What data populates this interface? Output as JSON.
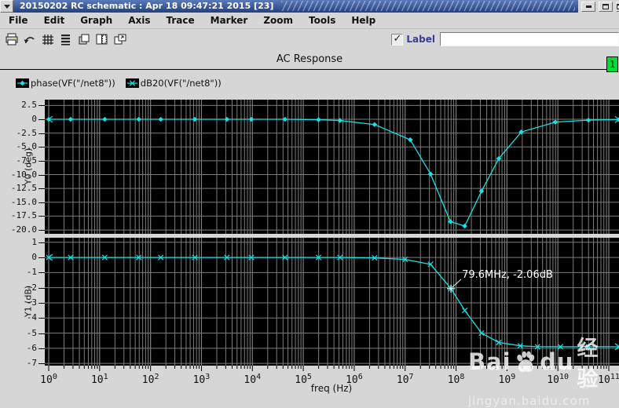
{
  "window": {
    "title": "20150202 RC schematic : Apr 18 09:47:21 2015 [23]",
    "controls": [
      "window-menu",
      "minimize",
      "maximize",
      "close"
    ],
    "badge": "1"
  },
  "menu_bar": {
    "items": [
      "File",
      "Edit",
      "Graph",
      "Axis",
      "Trace",
      "Marker",
      "Zoom",
      "Tools",
      "Help"
    ]
  },
  "toolbar": {
    "icons": [
      "printer-icon",
      "undo-icon",
      "grid-icon",
      "strip-mode-icon",
      "copy-icon",
      "split-view-icon",
      "new-window-icon"
    ],
    "label_checkbox": {
      "checked": true,
      "check_glyph": "✓",
      "label": "Label"
    },
    "label_input_value": ""
  },
  "plot_header": {
    "title": "AC Response"
  },
  "legend": [
    {
      "marker": "diamond",
      "expr": "phase(VF(\"/net8\"))"
    },
    {
      "marker": "asterisk",
      "expr": "dB20(VF(\"/net8\"))"
    }
  ],
  "colors": {
    "trace": "#17e3e3",
    "grid": "#7d7d7d",
    "plot_bg": "#000000",
    "chrome": "#d6d6d6",
    "titlebar_blue": "#2d4f96",
    "annotation": "#ffffff",
    "badge_green": "#00dd33",
    "label_text": "#3c3c8e"
  },
  "watermark": {
    "brand_left": "Bai",
    "brand_right": "du",
    "brand_cn": "经验",
    "url": "jingyan.baidu.com"
  },
  "chart_data": [
    {
      "type": "line",
      "panel": "top",
      "title": "AC Response",
      "xlabel": "freq (Hz)",
      "xscale": "log",
      "x_decades_range": [
        0,
        11.2
      ],
      "ylabel": "Y0 (deg)",
      "ytick_labels": [
        "2.5",
        "0",
        "-2.5",
        "-5.0",
        "-7.5",
        "-10.0",
        "-12.5",
        "-15.0",
        "-17.5",
        "-20.0"
      ],
      "ylim": [
        -20.7,
        3.55
      ],
      "grid": true,
      "series": [
        {
          "name": "phase(VF(\"/net8\"))",
          "marker": "diamond",
          "points_log10f_deg": [
            [
              0,
              0
            ],
            [
              0.43,
              0
            ],
            [
              1.1,
              0
            ],
            [
              1.77,
              0
            ],
            [
              2.2,
              0
            ],
            [
              2.87,
              0
            ],
            [
              3.5,
              0
            ],
            [
              3.98,
              0
            ],
            [
              4.64,
              0
            ],
            [
              5.3,
              -0.08
            ],
            [
              5.72,
              -0.22
            ],
            [
              6.4,
              -0.95
            ],
            [
              7.1,
              -3.7
            ],
            [
              7.5,
              -9.9
            ],
            [
              7.89,
              -18.5
            ],
            [
              8.17,
              -19.3
            ],
            [
              8.5,
              -13.0
            ],
            [
              8.84,
              -7.1
            ],
            [
              9.28,
              -2.3
            ],
            [
              9.95,
              -0.5
            ],
            [
              10.6,
              -0.15
            ],
            [
              11.2,
              -0.05
            ]
          ]
        }
      ]
    },
    {
      "type": "line",
      "panel": "bottom",
      "xlabel": "freq (Hz)",
      "xscale": "log",
      "x_decades_range": [
        0,
        11.2
      ],
      "xtick_exponents": [
        0,
        1,
        2,
        3,
        4,
        5,
        6,
        7,
        8,
        9,
        10,
        11
      ],
      "ylabel": "Y1 (dB)",
      "ytick_labels": [
        "1",
        "0",
        "-1",
        "-2",
        "-3",
        "-4",
        "-5",
        "-6",
        "-7"
      ],
      "ylim": [
        -7.15,
        1.3
      ],
      "grid": true,
      "series": [
        {
          "name": "dB20(VF(\"/net8\"))",
          "marker": "x",
          "points_log10f_db": [
            [
              0,
              0
            ],
            [
              0.43,
              0
            ],
            [
              1.1,
              0
            ],
            [
              1.77,
              0
            ],
            [
              2.2,
              0
            ],
            [
              2.87,
              0
            ],
            [
              3.5,
              0
            ],
            [
              3.98,
              0
            ],
            [
              4.64,
              0
            ],
            [
              5.3,
              0
            ],
            [
              5.72,
              0
            ],
            [
              6.4,
              -0.03
            ],
            [
              7.0,
              -0.13
            ],
            [
              7.5,
              -0.45
            ],
            [
              7.9,
              -2.06
            ],
            [
              8.17,
              -3.5
            ],
            [
              8.5,
              -5.0
            ],
            [
              8.84,
              -5.62
            ],
            [
              9.26,
              -5.84
            ],
            [
              9.6,
              -5.9
            ],
            [
              10.05,
              -5.9
            ],
            [
              10.6,
              -5.9
            ],
            [
              11.2,
              -5.9
            ]
          ]
        }
      ],
      "annotation": {
        "text": "79.6MHz, -2.06dB",
        "freq_log10": 7.9,
        "value_db": -2.06
      }
    }
  ]
}
